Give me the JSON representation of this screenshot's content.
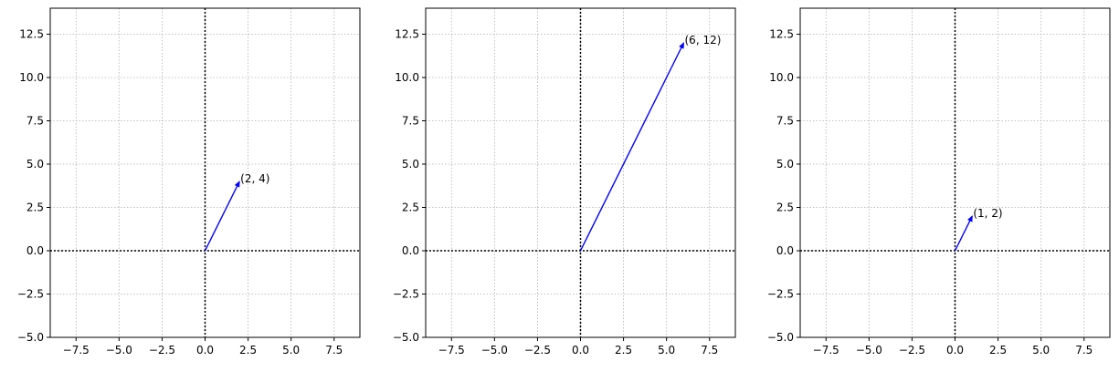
{
  "figure": {
    "axis_color": "#000000",
    "grid_color": "#b0b0b0",
    "vector_color": "#0000ff"
  },
  "chart_data": [
    {
      "type": "vector",
      "xlim": [
        -9,
        9
      ],
      "ylim": [
        -5,
        14
      ],
      "x_ticks": [
        -7.5,
        -5.0,
        -2.5,
        0.0,
        2.5,
        5.0,
        7.5
      ],
      "y_ticks": [
        -5.0,
        -2.5,
        0.0,
        2.5,
        5.0,
        7.5,
        10.0,
        12.5
      ],
      "x_tick_labels": [
        "−7.5",
        "−5.0",
        "−2.5",
        "0.0",
        "2.5",
        "5.0",
        "7.5"
      ],
      "y_tick_labels": [
        "−5.0",
        "−2.5",
        "0.0",
        "2.5",
        "5.0",
        "7.5",
        "10.0",
        "12.5"
      ],
      "grid": true,
      "grid_style": "dotted",
      "vectors": [
        {
          "x0": 0,
          "y0": 0,
          "x": 2,
          "y": 4,
          "label": "(2, 4)"
        }
      ]
    },
    {
      "type": "vector",
      "xlim": [
        -9,
        9
      ],
      "ylim": [
        -5,
        14
      ],
      "x_ticks": [
        -7.5,
        -5.0,
        -2.5,
        0.0,
        2.5,
        5.0,
        7.5
      ],
      "y_ticks": [
        -5.0,
        -2.5,
        0.0,
        2.5,
        5.0,
        7.5,
        10.0,
        12.5
      ],
      "x_tick_labels": [
        "−7.5",
        "−5.0",
        "−2.5",
        "0.0",
        "2.5",
        "5.0",
        "7.5"
      ],
      "y_tick_labels": [
        "−5.0",
        "−2.5",
        "0.0",
        "2.5",
        "5.0",
        "7.5",
        "10.0",
        "12.5"
      ],
      "grid": true,
      "grid_style": "dotted",
      "vectors": [
        {
          "x0": 0,
          "y0": 0,
          "x": 6,
          "y": 12,
          "label": "(6, 12)"
        }
      ]
    },
    {
      "type": "vector",
      "xlim": [
        -9,
        9
      ],
      "ylim": [
        -5,
        14
      ],
      "x_ticks": [
        -7.5,
        -5.0,
        -2.5,
        0.0,
        2.5,
        5.0,
        7.5
      ],
      "y_ticks": [
        -5.0,
        -2.5,
        0.0,
        2.5,
        5.0,
        7.5,
        10.0,
        12.5
      ],
      "x_tick_labels": [
        "−7.5",
        "−5.0",
        "−2.5",
        "0.0",
        "2.5",
        "5.0",
        "7.5"
      ],
      "y_tick_labels": [
        "−5.0",
        "−2.5",
        "0.0",
        "2.5",
        "5.0",
        "7.5",
        "10.0",
        "12.5"
      ],
      "grid": true,
      "grid_style": "dotted",
      "vectors": [
        {
          "x0": 0,
          "y0": 0,
          "x": 1,
          "y": 2,
          "label": "(1, 2)"
        }
      ]
    }
  ]
}
